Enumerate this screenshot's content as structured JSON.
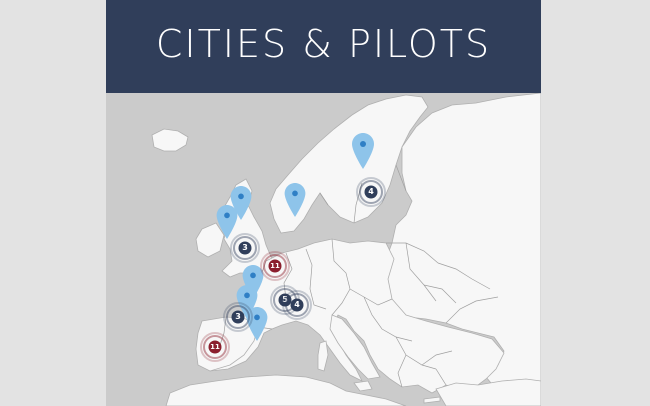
{
  "header": {
    "title": "CITIES & PILOTS"
  },
  "colors": {
    "header_bg": "#303e5a",
    "sea": "#cbcbcb",
    "land": "#f7f7f7",
    "pin": "#8ec4ea",
    "pin_dot": "#2f7fc5",
    "cluster_navy": "#303e5a",
    "cluster_red": "#8b1e2d"
  },
  "map": {
    "pins": [
      {
        "name": "pin-sweden-finland",
        "icon": "map-pin-icon"
      },
      {
        "name": "pin-oslo",
        "icon": "map-pin-icon"
      },
      {
        "name": "pin-scotland-east",
        "icon": "map-pin-icon"
      },
      {
        "name": "pin-scotland-west",
        "icon": "map-pin-icon"
      },
      {
        "name": "pin-france-north",
        "icon": "map-pin-icon"
      },
      {
        "name": "pin-france-west",
        "icon": "map-pin-icon"
      },
      {
        "name": "pin-spain",
        "icon": "map-pin-icon"
      }
    ],
    "clusters": [
      {
        "label": "4",
        "color": "navy"
      },
      {
        "label": "3",
        "color": "navy"
      },
      {
        "label": "11",
        "color": "red"
      },
      {
        "label": "5",
        "color": "navy"
      },
      {
        "label": "4",
        "color": "navy"
      },
      {
        "label": "3",
        "color": "navy"
      },
      {
        "label": "11",
        "color": "red"
      }
    ]
  }
}
